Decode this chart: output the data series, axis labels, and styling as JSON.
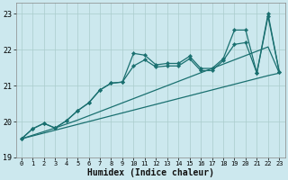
{
  "xlabel": "Humidex (Indice chaleur)",
  "bg_color": "#cce8ee",
  "grid_color": "#aacccc",
  "line_color": "#1a7070",
  "xlim": [
    -0.5,
    23.5
  ],
  "ylim": [
    19,
    23.3
  ],
  "yticks": [
    19,
    20,
    21,
    22,
    23
  ],
  "xticks": [
    0,
    1,
    2,
    3,
    4,
    5,
    6,
    7,
    8,
    9,
    10,
    11,
    12,
    13,
    14,
    15,
    16,
    17,
    18,
    19,
    20,
    21,
    22,
    23
  ],
  "x": [
    0,
    1,
    2,
    3,
    4,
    5,
    6,
    7,
    8,
    9,
    10,
    11,
    12,
    13,
    14,
    15,
    16,
    17,
    18,
    19,
    20,
    21,
    22,
    23
  ],
  "line_straight_bottom": [
    19.52,
    19.6,
    19.68,
    19.76,
    19.84,
    19.92,
    20.0,
    20.08,
    20.16,
    20.24,
    20.32,
    20.4,
    20.48,
    20.56,
    20.64,
    20.72,
    20.8,
    20.88,
    20.96,
    21.04,
    21.12,
    21.2,
    21.28,
    21.35
  ],
  "line_straight_upper": [
    19.52,
    19.62,
    19.72,
    19.82,
    19.93,
    20.04,
    20.16,
    20.28,
    20.4,
    20.52,
    20.64,
    20.76,
    20.88,
    21.0,
    21.12,
    21.24,
    21.36,
    21.48,
    21.6,
    21.72,
    21.84,
    21.96,
    22.08,
    21.35
  ],
  "line_wiggly_lower": [
    19.52,
    19.8,
    19.95,
    19.82,
    20.02,
    20.3,
    20.52,
    20.88,
    21.07,
    21.1,
    21.55,
    21.72,
    21.52,
    21.55,
    21.55,
    21.75,
    21.42,
    21.42,
    21.7,
    22.15,
    22.2,
    21.35,
    22.93,
    21.38
  ],
  "line_wiggly_upper": [
    19.52,
    19.8,
    19.95,
    19.82,
    20.02,
    20.3,
    20.52,
    20.88,
    21.07,
    21.1,
    21.9,
    21.85,
    21.58,
    21.62,
    21.62,
    21.82,
    21.48,
    21.48,
    21.75,
    22.55,
    22.55,
    21.35,
    23.0,
    21.38
  ]
}
